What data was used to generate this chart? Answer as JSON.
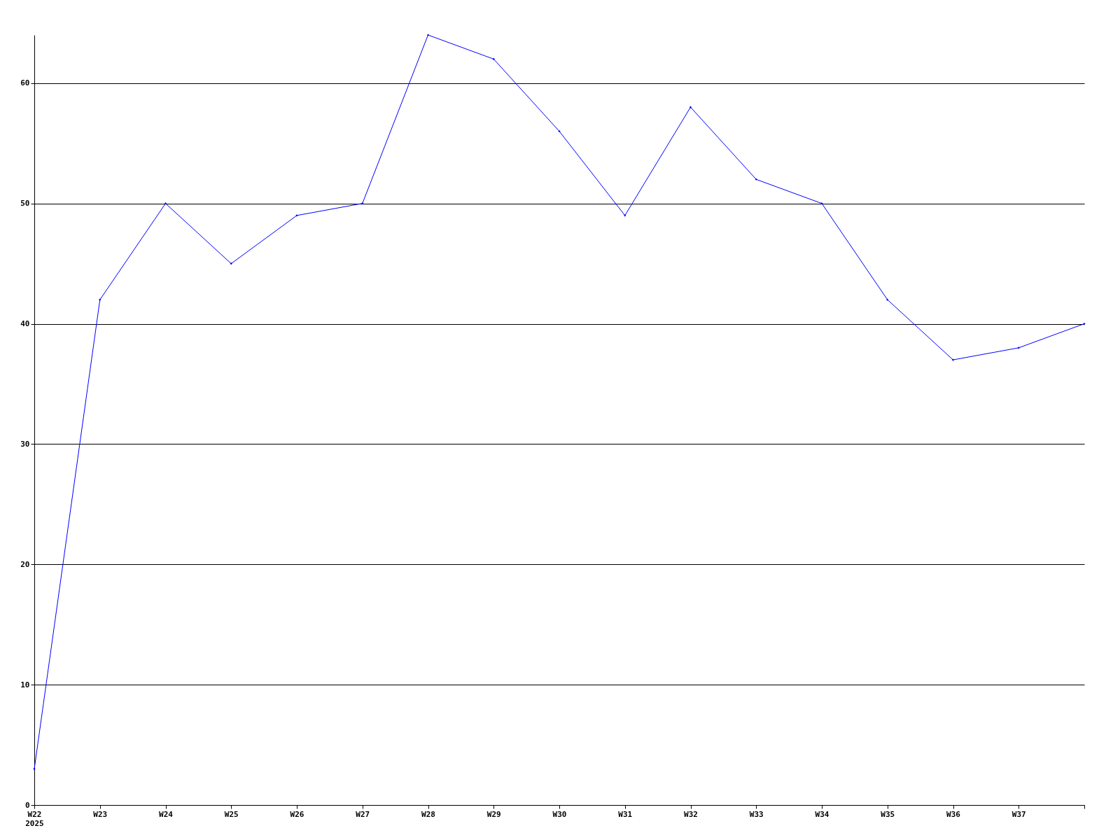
{
  "chart_data": {
    "type": "line",
    "categories": [
      "W22\n2025",
      "W23",
      "W24",
      "W25",
      "W26",
      "W27",
      "W28",
      "W29",
      "W30",
      "W31",
      "W32",
      "W33",
      "W34",
      "W35",
      "W36",
      "W37",
      null
    ],
    "series": [
      {
        "color": "#0000ff",
        "values": [
          3,
          42,
          50,
          45,
          49,
          50,
          64,
          62,
          56,
          49,
          58,
          52,
          50,
          42,
          37,
          38,
          40
        ]
      }
    ],
    "ylim": [
      0,
      64
    ],
    "yticks": [
      0,
      10,
      20,
      30,
      40,
      50,
      60
    ],
    "grid": "y",
    "marker": "diamond",
    "line_style": "solid"
  }
}
